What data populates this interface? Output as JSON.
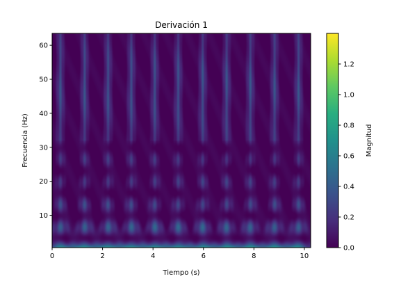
{
  "chart_data": {
    "type": "heatmap",
    "title": "Derivación 1",
    "xlabel": "Tiempo (s)",
    "ylabel": "Frecuencia (Hz)",
    "xlim": [
      0,
      10.25
    ],
    "ylim": [
      0.5,
      63.5
    ],
    "x_ticks": [
      0,
      2,
      4,
      6,
      8,
      10
    ],
    "y_ticks": [
      10,
      20,
      30,
      40,
      50,
      60
    ],
    "colormap": "viridis",
    "colorbar": {
      "label": "Magnitud",
      "range": [
        0,
        1.4
      ],
      "ticks": [
        "0.0",
        "0.2",
        "0.4",
        "0.6",
        "0.8",
        "1.0",
        "1.2"
      ]
    },
    "burst_times_s": [
      0.33,
      1.29,
      2.22,
      3.14,
      4.07,
      5.0,
      5.97,
      6.92,
      7.86,
      8.82,
      9.77
    ],
    "peak_magnitude": 1.4
  }
}
